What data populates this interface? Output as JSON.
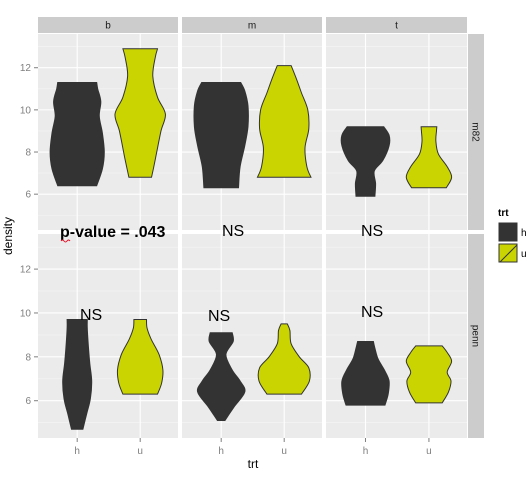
{
  "chart_data": {
    "type": "violin",
    "xlabel": "trt",
    "ylabel": "density",
    "x_categories": [
      "h",
      "u"
    ],
    "ylim": [
      4.3,
      13.6
    ],
    "yticks": [
      6,
      8,
      10,
      12
    ],
    "facet_columns": [
      "b",
      "m",
      "t"
    ],
    "facet_rows": [
      "m82",
      "penn"
    ],
    "legend": {
      "title": "trt",
      "position": "right",
      "entries": [
        {
          "label": "h",
          "color": "#333333"
        },
        {
          "label": "u",
          "color": "#c9d400"
        }
      ]
    },
    "series": [
      {
        "column": "b",
        "row": "m82",
        "trt": "h",
        "ymin": 6.4,
        "ymax": 11.3,
        "profile": [
          [
            6.4,
            0.62
          ],
          [
            7.2,
            0.8
          ],
          [
            8.0,
            0.86
          ],
          [
            8.9,
            0.8
          ],
          [
            9.7,
            0.7
          ],
          [
            10.4,
            0.75
          ],
          [
            11.0,
            0.65
          ],
          [
            11.3,
            0.62
          ]
        ]
      },
      {
        "column": "b",
        "row": "m82",
        "trt": "u",
        "ymin": 6.8,
        "ymax": 12.9,
        "profile": [
          [
            6.8,
            0.36
          ],
          [
            7.8,
            0.5
          ],
          [
            9.0,
            0.66
          ],
          [
            9.8,
            0.8
          ],
          [
            10.6,
            0.55
          ],
          [
            11.6,
            0.4
          ],
          [
            12.5,
            0.48
          ],
          [
            12.9,
            0.55
          ]
        ]
      },
      {
        "column": "m",
        "row": "m82",
        "trt": "h",
        "ymin": 6.3,
        "ymax": 11.3,
        "profile": [
          [
            6.3,
            0.55
          ],
          [
            7.3,
            0.6
          ],
          [
            8.3,
            0.75
          ],
          [
            9.2,
            0.85
          ],
          [
            10.2,
            0.85
          ],
          [
            10.9,
            0.75
          ],
          [
            11.3,
            0.62
          ]
        ]
      },
      {
        "column": "m",
        "row": "m82",
        "trt": "u",
        "ymin": 6.8,
        "ymax": 12.1,
        "profile": [
          [
            6.8,
            0.85
          ],
          [
            7.3,
            0.72
          ],
          [
            8.2,
            0.66
          ],
          [
            9.1,
            0.78
          ],
          [
            10.0,
            0.75
          ],
          [
            10.8,
            0.55
          ],
          [
            11.5,
            0.38
          ],
          [
            12.1,
            0.22
          ]
        ]
      },
      {
        "column": "t",
        "row": "m82",
        "trt": "h",
        "ymin": 5.9,
        "ymax": 9.2,
        "profile": [
          [
            5.9,
            0.3
          ],
          [
            6.5,
            0.32
          ],
          [
            7.1,
            0.28
          ],
          [
            7.6,
            0.55
          ],
          [
            8.3,
            0.75
          ],
          [
            8.8,
            0.75
          ],
          [
            9.2,
            0.58
          ]
        ]
      },
      {
        "column": "t",
        "row": "m82",
        "trt": "u",
        "ymin": 6.3,
        "ymax": 9.2,
        "profile": [
          [
            6.3,
            0.55
          ],
          [
            6.8,
            0.72
          ],
          [
            7.3,
            0.58
          ],
          [
            7.9,
            0.3
          ],
          [
            8.5,
            0.22
          ],
          [
            9.0,
            0.24
          ],
          [
            9.2,
            0.25
          ]
        ]
      },
      {
        "column": "b",
        "row": "penn",
        "trt": "h",
        "ymin": 4.7,
        "ymax": 9.7,
        "profile": [
          [
            4.7,
            0.18
          ],
          [
            5.4,
            0.3
          ],
          [
            6.1,
            0.42
          ],
          [
            6.9,
            0.46
          ],
          [
            7.7,
            0.4
          ],
          [
            8.6,
            0.35
          ],
          [
            9.3,
            0.32
          ],
          [
            9.7,
            0.32
          ]
        ]
      },
      {
        "column": "b",
        "row": "penn",
        "trt": "u",
        "ymin": 6.3,
        "ymax": 9.7,
        "profile": [
          [
            6.3,
            0.55
          ],
          [
            6.8,
            0.68
          ],
          [
            7.4,
            0.72
          ],
          [
            8.1,
            0.6
          ],
          [
            8.8,
            0.35
          ],
          [
            9.3,
            0.22
          ],
          [
            9.7,
            0.2
          ]
        ]
      },
      {
        "column": "m",
        "row": "penn",
        "trt": "h",
        "ymin": 5.1,
        "ymax": 9.1,
        "profile": [
          [
            5.1,
            0.12
          ],
          [
            5.7,
            0.4
          ],
          [
            6.4,
            0.75
          ],
          [
            6.9,
            0.6
          ],
          [
            7.4,
            0.35
          ],
          [
            8.1,
            0.15
          ],
          [
            8.7,
            0.38
          ],
          [
            9.1,
            0.35
          ]
        ]
      },
      {
        "column": "m",
        "row": "penn",
        "trt": "u",
        "ymin": 6.3,
        "ymax": 9.5,
        "profile": [
          [
            6.3,
            0.55
          ],
          [
            6.9,
            0.8
          ],
          [
            7.5,
            0.78
          ],
          [
            8.0,
            0.48
          ],
          [
            8.6,
            0.22
          ],
          [
            9.2,
            0.18
          ],
          [
            9.5,
            0.1
          ]
        ]
      },
      {
        "column": "t",
        "row": "penn",
        "trt": "h",
        "ymin": 5.8,
        "ymax": 8.7,
        "profile": [
          [
            5.8,
            0.62
          ],
          [
            6.3,
            0.72
          ],
          [
            6.9,
            0.75
          ],
          [
            7.4,
            0.6
          ],
          [
            7.9,
            0.4
          ],
          [
            8.4,
            0.3
          ],
          [
            8.7,
            0.25
          ]
        ]
      },
      {
        "column": "t",
        "row": "penn",
        "trt": "u",
        "ymin": 5.9,
        "ymax": 8.5,
        "profile": [
          [
            5.9,
            0.42
          ],
          [
            6.4,
            0.62
          ],
          [
            6.9,
            0.7
          ],
          [
            7.3,
            0.58
          ],
          [
            7.8,
            0.72
          ],
          [
            8.2,
            0.58
          ],
          [
            8.5,
            0.42
          ]
        ]
      }
    ],
    "annotations": [
      {
        "text": "p-value = .043",
        "style": "bold",
        "column": "b",
        "row": "penn",
        "anchor": "top-left"
      },
      {
        "text": "NS",
        "column": "m",
        "row": "penn",
        "anchor": "top-left"
      },
      {
        "text": "NS",
        "column": "t",
        "row": "penn",
        "anchor": "top-mid"
      },
      {
        "text": "NS",
        "column": "b",
        "row": "penn",
        "anchor": "upper-left"
      },
      {
        "text": "NS",
        "column": "m",
        "row": "penn",
        "anchor": "upper-left"
      },
      {
        "text": "NS",
        "column": "t",
        "row": "penn",
        "anchor": "upper-mid"
      }
    ]
  }
}
